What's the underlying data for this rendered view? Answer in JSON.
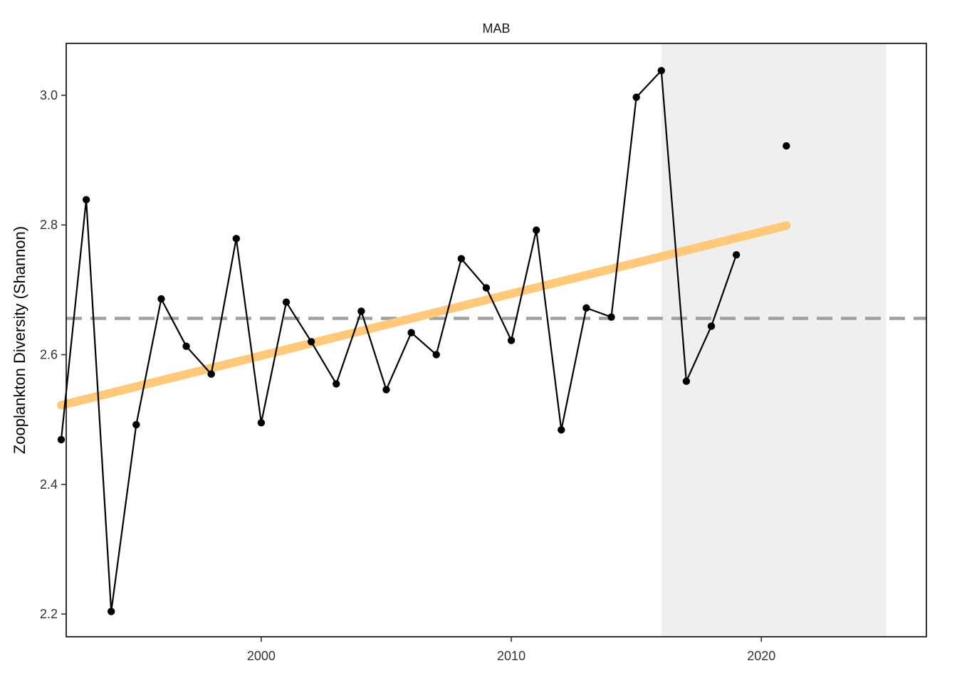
{
  "chart_data": {
    "type": "line",
    "title": "MAB",
    "xlabel": "",
    "ylabel": "Zooplankton Diversity (Shannon)",
    "xlim": [
      1992.2,
      2026.6
    ],
    "ylim": [
      2.165,
      3.08
    ],
    "x_ticks": [
      {
        "value": 2000,
        "label": "2000"
      },
      {
        "value": 2010,
        "label": "2010"
      },
      {
        "value": 2020,
        "label": "2020"
      }
    ],
    "y_ticks": [
      {
        "value": 2.2,
        "label": "2.2"
      },
      {
        "value": 2.4,
        "label": "2.4"
      },
      {
        "value": 2.6,
        "label": "2.6"
      },
      {
        "value": 2.8,
        "label": "2.8"
      },
      {
        "value": 3.0,
        "label": "3.0"
      }
    ],
    "grid": false,
    "legend": "none",
    "series": [
      {
        "x": [
          1992,
          1993,
          1994,
          1995,
          1996,
          1997,
          1998,
          1999,
          2000,
          2001,
          2002,
          2003,
          2004,
          2005,
          2006,
          2007,
          2008,
          2009,
          2010,
          2011,
          2012,
          2013,
          2014,
          2015,
          2016,
          2017,
          2018,
          2019,
          2021
        ],
        "y": [
          2.469,
          2.839,
          2.204,
          2.492,
          2.686,
          2.613,
          2.57,
          2.779,
          2.495,
          2.681,
          2.62,
          2.555,
          2.667,
          2.546,
          2.634,
          2.6,
          2.748,
          2.703,
          2.622,
          2.792,
          2.484,
          2.672,
          2.658,
          2.997,
          3.038,
          2.559,
          2.644,
          2.754,
          2.922
        ],
        "line_segments": [
          [
            0,
            27
          ]
        ],
        "color": "#000000"
      }
    ],
    "trend_line": {
      "x": [
        1992,
        2021
      ],
      "y": [
        2.522,
        2.799
      ],
      "color": "#FFC87A"
    },
    "mean_line": {
      "y": 2.656,
      "color": "#A0A0A0",
      "style": "dashed"
    },
    "highlight_region": {
      "x": [
        2016,
        2025
      ],
      "color": "#EFEFEF"
    }
  }
}
